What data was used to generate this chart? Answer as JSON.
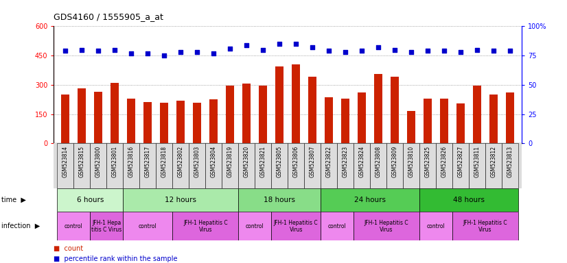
{
  "title": "GDS4160 / 1555905_a_at",
  "samples": [
    "GSM523814",
    "GSM523815",
    "GSM523800",
    "GSM523801",
    "GSM523816",
    "GSM523817",
    "GSM523818",
    "GSM523802",
    "GSM523803",
    "GSM523804",
    "GSM523819",
    "GSM523820",
    "GSM523821",
    "GSM523805",
    "GSM523806",
    "GSM523807",
    "GSM523822",
    "GSM523823",
    "GSM523824",
    "GSM523808",
    "GSM523809",
    "GSM523810",
    "GSM523825",
    "GSM523826",
    "GSM523827",
    "GSM523811",
    "GSM523812",
    "GSM523813"
  ],
  "counts": [
    250,
    282,
    265,
    310,
    228,
    210,
    208,
    220,
    208,
    225,
    295,
    305,
    295,
    395,
    405,
    340,
    235,
    230,
    262,
    355,
    340,
    165,
    228,
    228,
    205,
    295,
    252,
    262
  ],
  "percentile": [
    79,
    80,
    79,
    80,
    77,
    77,
    75,
    78,
    78,
    77,
    81,
    84,
    80,
    85,
    85,
    82,
    79,
    78,
    79,
    82,
    80,
    78,
    79,
    79,
    78,
    80,
    79,
    79
  ],
  "time_groups": [
    {
      "label": "6 hours",
      "start": 0,
      "end": 4,
      "color": "#ccf5cc"
    },
    {
      "label": "12 hours",
      "start": 4,
      "end": 11,
      "color": "#aaeaaa"
    },
    {
      "label": "18 hours",
      "start": 11,
      "end": 16,
      "color": "#88dd88"
    },
    {
      "label": "24 hours",
      "start": 16,
      "end": 22,
      "color": "#55cc55"
    },
    {
      "label": "48 hours",
      "start": 22,
      "end": 28,
      "color": "#33bb33"
    }
  ],
  "infection_groups": [
    {
      "label": "control",
      "start": 0,
      "end": 2,
      "color": "#ee88ee"
    },
    {
      "label": "JFH-1 Hepa\ntitis C Virus",
      "start": 2,
      "end": 4,
      "color": "#dd66dd"
    },
    {
      "label": "control",
      "start": 4,
      "end": 7,
      "color": "#ee88ee"
    },
    {
      "label": "JFH-1 Hepatitis C\nVirus",
      "start": 7,
      "end": 11,
      "color": "#dd66dd"
    },
    {
      "label": "control",
      "start": 11,
      "end": 13,
      "color": "#ee88ee"
    },
    {
      "label": "JFH-1 Hepatitis C\nVirus",
      "start": 13,
      "end": 16,
      "color": "#dd66dd"
    },
    {
      "label": "control",
      "start": 16,
      "end": 18,
      "color": "#ee88ee"
    },
    {
      "label": "JFH-1 Hepatitis C\nVirus",
      "start": 18,
      "end": 22,
      "color": "#dd66dd"
    },
    {
      "label": "control",
      "start": 22,
      "end": 24,
      "color": "#ee88ee"
    },
    {
      "label": "JFH-1 Hepatitis C\nVirus",
      "start": 24,
      "end": 28,
      "color": "#dd66dd"
    }
  ],
  "bar_color": "#cc2200",
  "dot_color": "#0000cc",
  "left_ylim": [
    0,
    600
  ],
  "left_yticks": [
    0,
    150,
    300,
    450,
    600
  ],
  "right_ylim": [
    0,
    100
  ],
  "right_yticks": [
    0,
    25,
    50,
    75,
    100
  ],
  "bar_width": 0.5,
  "bg_color": "#ffffff",
  "grid_color": "#888888",
  "label_bg": "#dddddd"
}
